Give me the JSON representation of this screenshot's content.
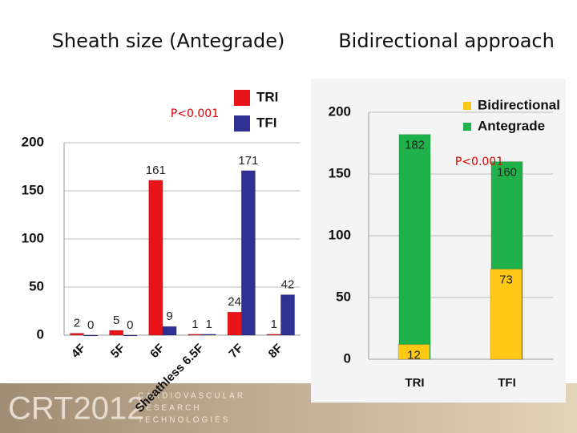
{
  "chart_data": [
    {
      "type": "bar",
      "title": "Sheath size (Antegrade)",
      "bar_mode": "grouped",
      "categories": [
        "4F",
        "5F",
        "6F",
        "Sheathless 6.5F",
        "7F",
        "8F"
      ],
      "series": [
        {
          "name": "TRI",
          "color": "#e8141a",
          "values": [
            2,
            5,
            161,
            1,
            24,
            1
          ]
        },
        {
          "name": "TFI",
          "color": "#2e3192",
          "values": [
            0,
            0,
            9,
            1,
            171,
            42
          ]
        }
      ],
      "ylim": [
        0,
        200
      ],
      "yticks": [
        0,
        50,
        100,
        150,
        200
      ],
      "grid": true,
      "annotations": [
        "P<0.001"
      ]
    },
    {
      "type": "bar",
      "title": "Bidirectional approach",
      "bar_mode": "overlaid",
      "categories": [
        "TRI",
        "TFI"
      ],
      "series": [
        {
          "name": "Bidirectional",
          "color": "#ffc814",
          "values": [
            12,
            73
          ]
        },
        {
          "name": "Antegrade",
          "color": "#1fb24a",
          "values": [
            182,
            160
          ]
        }
      ],
      "ylim": [
        0,
        200
      ],
      "yticks": [
        0,
        50,
        100,
        150,
        200
      ],
      "grid": true,
      "annotations": [
        "P<0.001"
      ]
    }
  ],
  "footer": {
    "logo": "CRT2012",
    "lines": [
      "CARDIOVASCULAR",
      "RESEARCH",
      "TECHNOLOGIES"
    ]
  }
}
